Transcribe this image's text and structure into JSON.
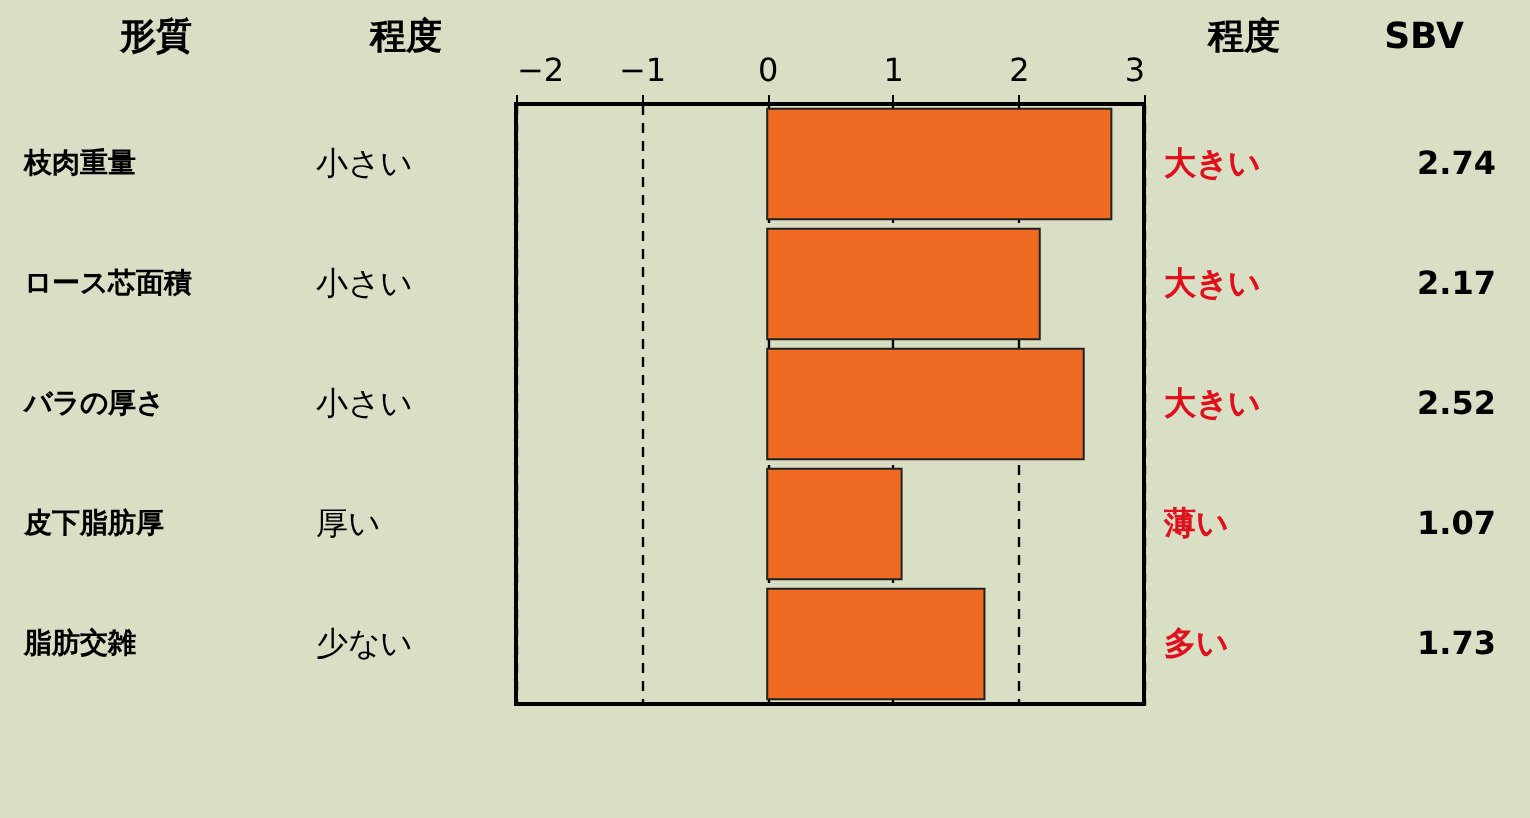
{
  "chart_data": {
    "type": "bar",
    "orientation": "horizontal",
    "ylabel": "形質",
    "categories": [
      "枝肉重量",
      "ロース芯面積",
      "バラの厚さ",
      "皮下脂肪厚",
      "脂肪交雑"
    ],
    "values": [
      2.74,
      2.17,
      2.52,
      1.07,
      1.73
    ],
    "color": "#ef6a22",
    "x2lim": [
      -2,
      3
    ],
    "x2ticks": [
      -2,
      -1,
      0,
      1,
      2,
      3
    ],
    "grid": "x",
    "data_labels": true,
    "annotations": [
      "程度",
      "小さい",
      "小さい",
      "小さい",
      "厚い",
      "少ない",
      "程度",
      "大きい",
      "大きい",
      "大きい",
      "薄い",
      "多い",
      "SBV"
    ]
  }
}
